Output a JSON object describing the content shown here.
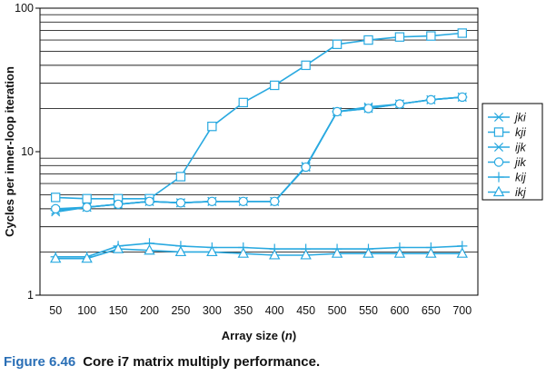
{
  "chart_data": {
    "type": "line",
    "ylabel": "Cycles per inner-loop iteration",
    "xlabel_prefix": "Array size (",
    "xlabel_var": "n",
    "xlabel_suffix": ")",
    "yscale": "log",
    "ylim": [
      1,
      100
    ],
    "ytick_labels": [
      "1",
      "10",
      "100"
    ],
    "ytick_values": [
      1,
      10,
      100
    ],
    "x_ticks": [
      50,
      100,
      150,
      200,
      250,
      300,
      350,
      400,
      450,
      500,
      550,
      600,
      650,
      700
    ],
    "xlim": [
      25,
      725
    ],
    "grid": "horizontal",
    "legend_position": "right",
    "color": "#29a9e0",
    "series": [
      {
        "name": "jki",
        "marker": "asterisk",
        "x": [
          50,
          100,
          150,
          200,
          250,
          300,
          350,
          400,
          450,
          500,
          550,
          600,
          650,
          700
        ],
        "y": [
          3.9,
          4.1,
          4.3,
          4.5,
          4.4,
          4.5,
          4.5,
          4.5,
          7.8,
          19,
          20,
          21.5,
          23,
          24
        ]
      },
      {
        "name": "kji",
        "marker": "square",
        "x": [
          50,
          100,
          150,
          200,
          250,
          300,
          350,
          400,
          450,
          500,
          550,
          600,
          650,
          700
        ],
        "y": [
          4.8,
          4.7,
          4.7,
          4.7,
          6.7,
          15,
          22,
          29,
          40,
          56,
          60,
          63,
          64,
          67
        ]
      },
      {
        "name": "ijk",
        "marker": "x",
        "x": [
          50,
          100,
          150,
          200,
          250,
          300,
          350,
          400,
          450,
          500,
          550,
          600,
          650,
          700
        ],
        "y": [
          3.8,
          4.1,
          4.3,
          4.5,
          4.4,
          4.5,
          4.5,
          4.5,
          7.9,
          19,
          20.5,
          21.5,
          23,
          24
        ]
      },
      {
        "name": "jik",
        "marker": "circle",
        "x": [
          50,
          100,
          150,
          200,
          250,
          300,
          350,
          400,
          450,
          500,
          550,
          600,
          650,
          700
        ],
        "y": [
          4.0,
          4.1,
          4.3,
          4.5,
          4.4,
          4.5,
          4.5,
          4.5,
          7.8,
          19,
          20,
          21.5,
          23,
          24
        ]
      },
      {
        "name": "kij",
        "marker": "plus",
        "x": [
          50,
          100,
          150,
          200,
          250,
          300,
          350,
          400,
          450,
          500,
          550,
          600,
          650,
          700
        ],
        "y": [
          1.85,
          1.85,
          2.2,
          2.3,
          2.2,
          2.15,
          2.15,
          2.1,
          2.1,
          2.1,
          2.1,
          2.15,
          2.15,
          2.2
        ]
      },
      {
        "name": "ikj",
        "marker": "triangle",
        "x": [
          50,
          100,
          150,
          200,
          250,
          300,
          350,
          400,
          450,
          500,
          550,
          600,
          650,
          700
        ],
        "y": [
          1.8,
          1.8,
          2.1,
          2.05,
          2.0,
          2.0,
          1.95,
          1.9,
          1.9,
          1.95,
          1.95,
          1.95,
          1.95,
          1.95
        ]
      }
    ]
  },
  "caption": {
    "label": "Figure 6.46",
    "text": "Core i7 matrix multiply performance."
  }
}
